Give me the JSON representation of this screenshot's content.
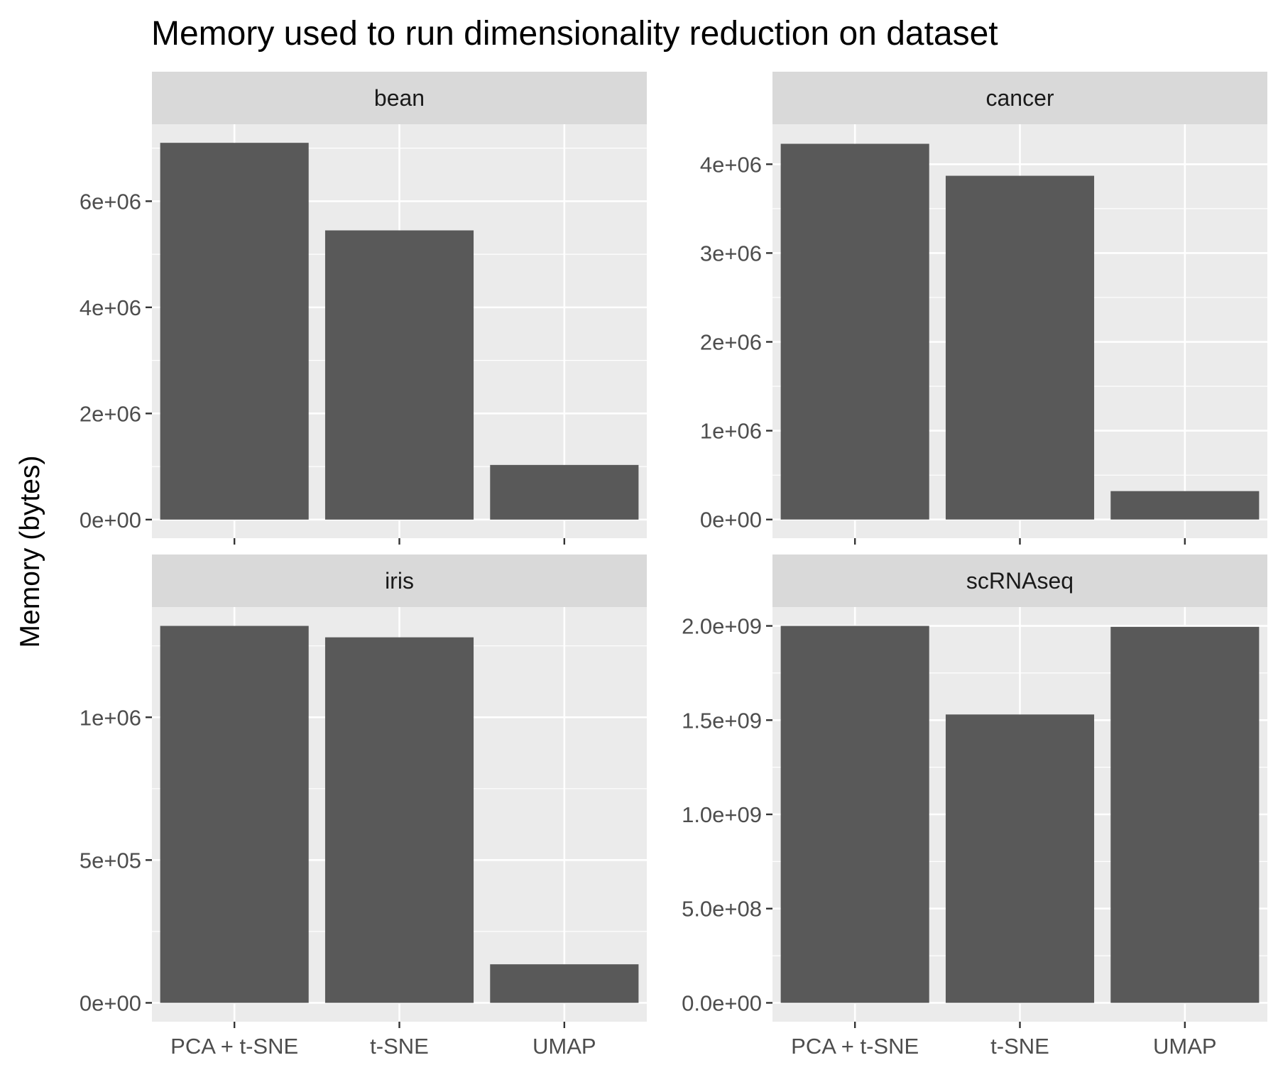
{
  "chart_data": {
    "type": "bar",
    "title": "Memory used to run dimensionality reduction on dataset",
    "xlabel": "",
    "ylabel": "Memory (bytes)",
    "categories": [
      "PCA + t-SNE",
      "t-SNE",
      "UMAP"
    ],
    "grid": true,
    "legend": "none",
    "colors": {
      "bar": "#595959",
      "panel_bg": "#ebebeb",
      "strip_bg": "#d9d9d9",
      "grid": "#ffffff",
      "axis_text": "#4d4d4d",
      "tick": "#333333"
    },
    "facets": [
      {
        "name": "bean",
        "values": [
          7100000,
          5450000,
          1030000
        ],
        "ylim": [
          -350000,
          7450000
        ],
        "major_ticks": [
          0,
          2000000,
          4000000,
          6000000
        ],
        "tick_labels": [
          "0e+00",
          "2e+06",
          "4e+06",
          "6e+06"
        ]
      },
      {
        "name": "cancer",
        "values": [
          4230000,
          3870000,
          320000
        ],
        "ylim": [
          -210000,
          4450000
        ],
        "major_ticks": [
          0,
          1000000,
          2000000,
          3000000,
          4000000
        ],
        "tick_labels": [
          "0e+00",
          "1e+06",
          "2e+06",
          "3e+06",
          "4e+06"
        ]
      },
      {
        "name": "iris",
        "values": [
          1320000,
          1280000,
          135000
        ],
        "ylim": [
          -66000,
          1386000
        ],
        "major_ticks": [
          0,
          500000,
          1000000
        ],
        "tick_labels": [
          "0e+00",
          "5e+05",
          "1e+06"
        ]
      },
      {
        "name": "scRNAseq",
        "values": [
          2000000000,
          1530000000,
          1995000000
        ],
        "ylim": [
          -100000000,
          2100000000
        ],
        "major_ticks": [
          0,
          500000000,
          1000000000,
          1500000000,
          2000000000
        ],
        "tick_labels": [
          "0.0e+00",
          "5.0e+08",
          "1.0e+09",
          "1.5e+09",
          "2.0e+09"
        ]
      }
    ]
  }
}
